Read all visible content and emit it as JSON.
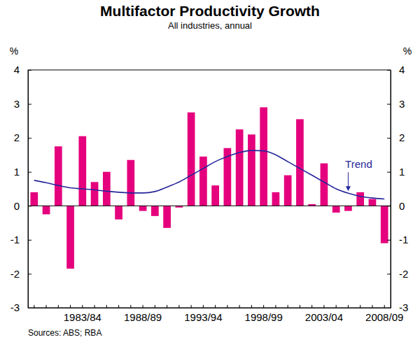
{
  "chart_data": {
    "type": "bar",
    "title": "Multifactor Productivity Growth",
    "subtitle": "All industries, annual",
    "y_label": "%",
    "y2_label": "%",
    "source": "Sources: ABS; RBA",
    "categories": [
      null,
      null,
      null,
      null,
      "1983/84",
      null,
      null,
      null,
      null,
      "1988/89",
      null,
      null,
      null,
      null,
      "1993/94",
      null,
      null,
      null,
      null,
      "1998/99",
      null,
      null,
      null,
      null,
      "2003/04",
      null,
      null,
      null,
      null,
      "2008/09"
    ],
    "series": [
      {
        "type": "bar",
        "color": "#e5007d",
        "values": [
          0.4,
          -0.25,
          1.75,
          -1.85,
          2.05,
          0.7,
          1.0,
          -0.4,
          1.35,
          -0.15,
          -0.3,
          -0.65,
          -0.05,
          2.75,
          1.45,
          0.6,
          1.7,
          2.25,
          2.1,
          2.9,
          0.4,
          0.9,
          2.55,
          0.05,
          1.25,
          -0.2,
          -0.15,
          0.4,
          0.2,
          -1.1
        ]
      },
      {
        "name": "Trend",
        "type": "line",
        "color": "#26269a",
        "values": [
          0.75,
          0.68,
          0.6,
          0.53,
          0.5,
          0.47,
          0.43,
          0.4,
          0.38,
          0.38,
          0.42,
          0.55,
          0.7,
          0.9,
          1.1,
          1.3,
          1.45,
          1.57,
          1.63,
          1.62,
          1.5,
          1.3,
          1.1,
          0.9,
          0.7,
          0.5,
          0.37,
          0.28,
          0.23,
          0.2
        ]
      }
    ],
    "ylim": [
      -3,
      4
    ],
    "yticks": [
      -3,
      -2,
      -1,
      0,
      1,
      2,
      3,
      4
    ],
    "y2lim": [
      -3,
      4
    ],
    "y2ticks": [
      -3,
      -2,
      -1,
      0,
      1,
      2,
      3,
      4
    ],
    "grid": false
  }
}
